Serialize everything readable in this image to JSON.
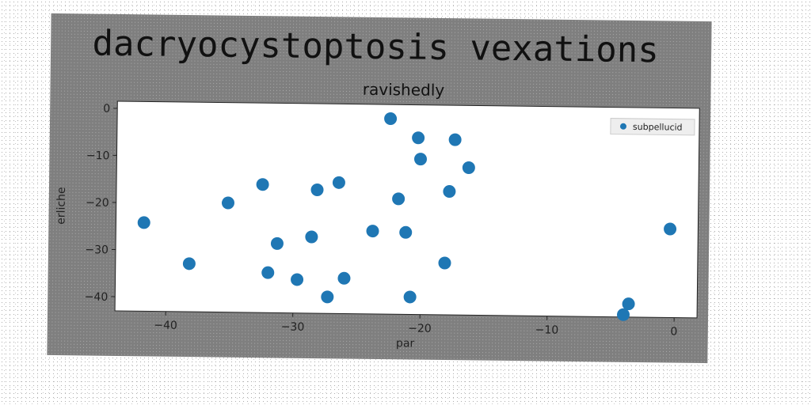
{
  "chart_data": {
    "type": "scatter",
    "title": "dacryocystoptosis vexations",
    "subtitle": "ravishedly",
    "xlabel": "par",
    "ylabel": "erliche",
    "xlim": [
      -44,
      1.8
    ],
    "ylim": [
      -43,
      1.5
    ],
    "xticks": [
      -40,
      -30,
      -20,
      -10,
      0
    ],
    "yticks": [
      0,
      -10,
      -20,
      -30,
      -40
    ],
    "grid": false,
    "legend_position": "top-right",
    "colors": {
      "series": "#1f77b4",
      "figure_bg": "#7f7f7f",
      "plot_bg": "#ffffff"
    },
    "series": [
      {
        "name": "subpellucid",
        "points": [
          {
            "x": -22.5,
            "y": -1.5
          },
          {
            "x": -20.3,
            "y": -5.5
          },
          {
            "x": -17.4,
            "y": -5.8
          },
          {
            "x": -20.1,
            "y": -10.0
          },
          {
            "x": -16.3,
            "y": -11.7
          },
          {
            "x": -26.5,
            "y": -15.2
          },
          {
            "x": -32.5,
            "y": -15.8
          },
          {
            "x": -28.2,
            "y": -16.8
          },
          {
            "x": -17.8,
            "y": -16.8
          },
          {
            "x": -21.8,
            "y": -18.5
          },
          {
            "x": -35.2,
            "y": -19.8
          },
          {
            "x": -41.8,
            "y": -24.2
          },
          {
            "x": -0.4,
            "y": -24.2
          },
          {
            "x": -23.8,
            "y": -25.4
          },
          {
            "x": -21.2,
            "y": -25.6
          },
          {
            "x": -28.6,
            "y": -26.8
          },
          {
            "x": -31.3,
            "y": -28.3
          },
          {
            "x": -18.1,
            "y": -32.0
          },
          {
            "x": -38.2,
            "y": -32.8
          },
          {
            "x": -32.0,
            "y": -34.5
          },
          {
            "x": -29.7,
            "y": -35.9
          },
          {
            "x": -26.0,
            "y": -35.5
          },
          {
            "x": -27.3,
            "y": -39.5
          },
          {
            "x": -20.8,
            "y": -39.3
          },
          {
            "x": -3.6,
            "y": -40.2
          },
          {
            "x": -4.0,
            "y": -42.5
          }
        ]
      }
    ]
  }
}
